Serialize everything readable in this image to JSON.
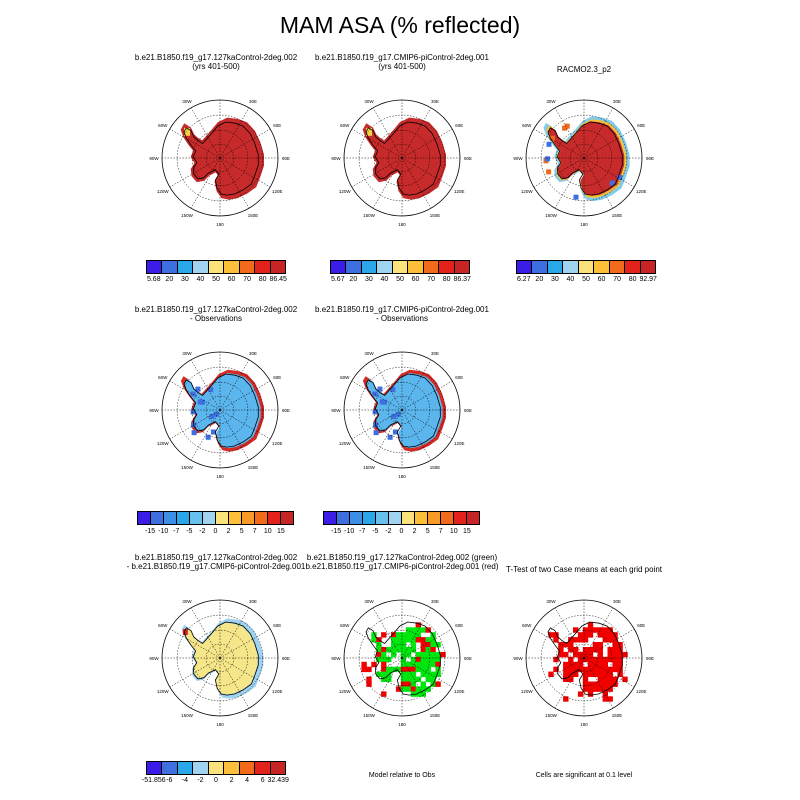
{
  "title": "MAM ASA (% reflected)",
  "colors": {
    "abs_scale": [
      "#3b1de8",
      "#3d6fe0",
      "#2aa7e8",
      "#9fd3ef",
      "#fbe27a",
      "#fdbf3a",
      "#f26a1c",
      "#e3221c",
      "#c72525"
    ],
    "diff_scale": [
      "#3b1de8",
      "#3d6fe0",
      "#3d8fe6",
      "#2aa7e8",
      "#68c0ec",
      "#9fd3ef",
      "#fbe27a",
      "#fdbf3a",
      "#f89a25",
      "#f26a1c",
      "#e3221c",
      "#c72525"
    ],
    "diff3_scale": [
      "#3b1de8",
      "#3d6fe0",
      "#2aa7e8",
      "#9fd3ef",
      "#fbe27a",
      "#fdbf3a",
      "#f26a1c",
      "#e3221c",
      "#c72525"
    ],
    "model_high": "#c72a2a",
    "obs_low": "#5cb6ee",
    "diff_small": "#f6e68a",
    "sig_green": "#00e60f",
    "sig_red": "#f20000"
  },
  "lon_labels": [
    "30W",
    "30E",
    "60E",
    "90E",
    "120E",
    "150E",
    "180",
    "150W",
    "120W",
    "90W",
    "60W"
  ],
  "panels": [
    {
      "id": "p1",
      "title_lines": [
        "b.e21.B1850.f19_g17.127kaControl-2deg.002",
        "(yrs 401-500)"
      ],
      "fill": "high",
      "colorbar": {
        "labels": [
          "5.68",
          "20",
          "30",
          "40",
          "50",
          "60",
          "70",
          "80",
          "86.45"
        ]
      }
    },
    {
      "id": "p2",
      "title_lines": [
        "b.e21.B1850.f19_g17.CMIP6-piControl-2deg.001",
        "(yrs 401-500)"
      ],
      "fill": "high",
      "colorbar": {
        "labels": [
          "5.67",
          "20",
          "30",
          "40",
          "50",
          "60",
          "70",
          "80",
          "86.37"
        ]
      }
    },
    {
      "id": "p3",
      "title_lines": [
        "RACMO2.3_p2"
      ],
      "fill": "obs",
      "colorbar": {
        "labels": [
          "6.27",
          "20",
          "30",
          "40",
          "50",
          "60",
          "70",
          "80",
          "92.97"
        ]
      }
    },
    {
      "id": "p4",
      "title_lines": [
        "b.e21.B1850.f19_g17.127kaControl-2deg.002",
        "- Observations"
      ],
      "fill": "low",
      "colorbar": {
        "labels": [
          "-15",
          "-10",
          "-7",
          "-5",
          "-2",
          "0",
          "2",
          "5",
          "7",
          "10",
          "15"
        ]
      }
    },
    {
      "id": "p5",
      "title_lines": [
        "b.e21.B1850.f19_g17.CMIP6-piControl-2deg.001",
        "- Observations"
      ],
      "fill": "low",
      "colorbar": {
        "labels": [
          "-15",
          "-10",
          "-7",
          "-5",
          "-2",
          "0",
          "2",
          "5",
          "7",
          "10",
          "15"
        ]
      }
    },
    {
      "id": "p7",
      "title_lines": [
        "b.e21.B1850.f19_g17.127kaControl-2deg.002",
        "- b.e21.B1850.f19_g17.CMIP6-piControl-2deg.001"
      ],
      "fill": "diff",
      "colorbar": {
        "labels": [
          "-51.856",
          "-6",
          "-4",
          "-2",
          "0",
          "2",
          "4",
          "6",
          "32.439"
        ]
      }
    },
    {
      "id": "p8",
      "title_lines": [
        "b.e21.B1850.f19_g17.127kaControl-2deg.002 (green)",
        "b.e21.B1850.f19_g17.CMIP6-piControl-2deg.001 (red)"
      ],
      "fill": "sig",
      "note": "Model relative to Obs"
    },
    {
      "id": "p9",
      "title_lines": [
        "T-Test of two Case means at each grid point"
      ],
      "fill": "ttest",
      "note": "Cells are significant at 0.1 level"
    }
  ]
}
